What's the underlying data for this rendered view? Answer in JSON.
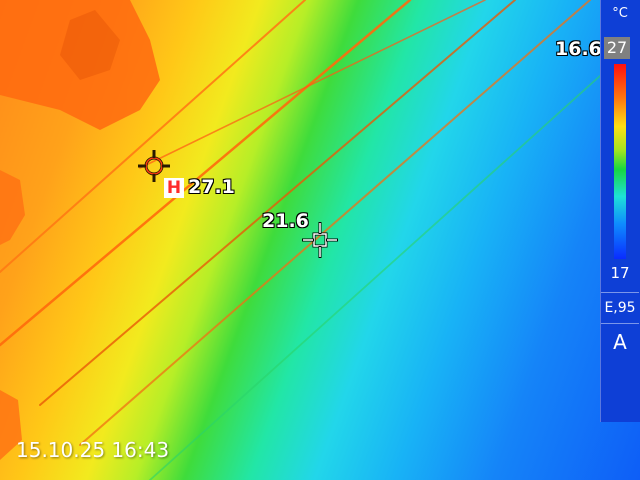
{
  "measurements": {
    "hot_marker": "H",
    "hot_value": "27.1",
    "center_value": "21.6",
    "cold_value": "16.6"
  },
  "status": {
    "timestamp": "15.10.25 16:43"
  },
  "scale": {
    "unit": "°C",
    "max": "27",
    "min": "17",
    "emissivity": "E,95",
    "mode": "A"
  },
  "palette": {
    "hot": "#ff1010",
    "warm": "#ffe014",
    "mid": "#18d640",
    "cool": "#1ee0d8",
    "cold": "#0a2cff"
  },
  "icons": {
    "hot_spot": "crosshair-icon",
    "center_spot": "crosshair-icon",
    "cold_spot": "crosshair-icon"
  }
}
